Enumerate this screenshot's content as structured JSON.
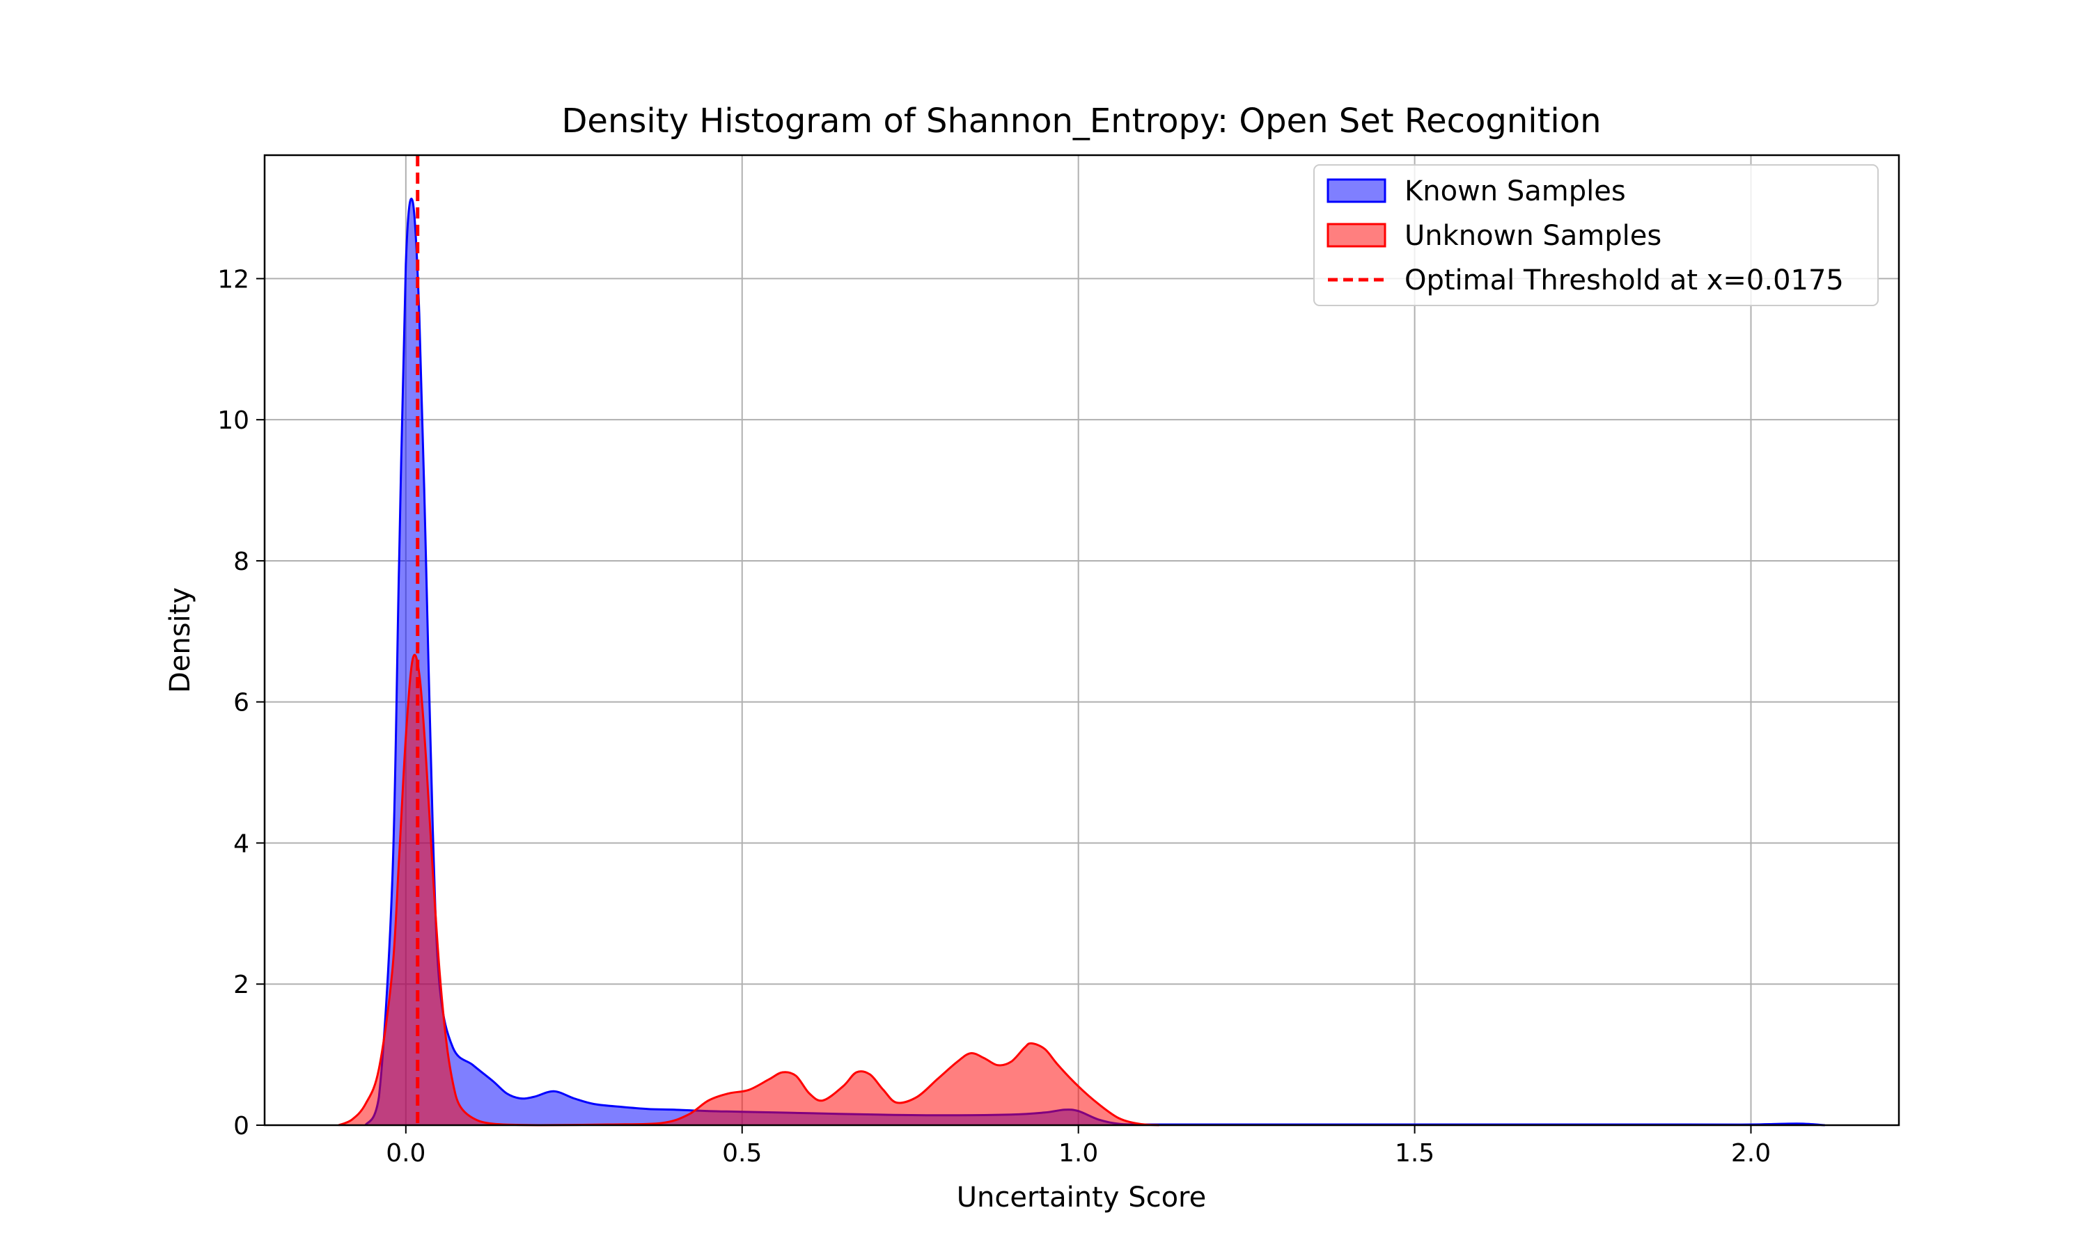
{
  "chart_data": {
    "type": "area",
    "title": "Density Histogram of Shannon_Entropy: Open Set Recognition",
    "xlabel": "Uncertainty Score",
    "ylabel": "Density",
    "xlim": [
      -0.21,
      2.22
    ],
    "ylim": [
      0,
      13.75
    ],
    "xticks": [
      0.0,
      0.5,
      1.0,
      1.5,
      2.0
    ],
    "xtick_labels": [
      "0.0",
      "0.5",
      "1.0",
      "1.5",
      "2.0"
    ],
    "yticks": [
      0,
      2,
      4,
      6,
      8,
      10,
      12
    ],
    "ytick_labels": [
      "0",
      "2",
      "4",
      "6",
      "8",
      "10",
      "12"
    ],
    "grid": true,
    "legend_position": "top-right",
    "series": [
      {
        "name": "Known Samples",
        "kind": "density",
        "color": "#0000ff",
        "fill_alpha": 0.5,
        "points": [
          [
            -0.06,
            0.0
          ],
          [
            -0.04,
            0.4
          ],
          [
            -0.02,
            3.5
          ],
          [
            -0.01,
            8.0
          ],
          [
            0.0,
            12.2
          ],
          [
            0.01,
            13.1
          ],
          [
            0.02,
            11.5
          ],
          [
            0.03,
            8.0
          ],
          [
            0.04,
            4.2
          ],
          [
            0.05,
            2.0
          ],
          [
            0.07,
            1.1
          ],
          [
            0.1,
            0.85
          ],
          [
            0.13,
            0.62
          ],
          [
            0.15,
            0.45
          ],
          [
            0.17,
            0.38
          ],
          [
            0.19,
            0.4
          ],
          [
            0.22,
            0.48
          ],
          [
            0.25,
            0.38
          ],
          [
            0.28,
            0.3
          ],
          [
            0.32,
            0.26
          ],
          [
            0.36,
            0.23
          ],
          [
            0.4,
            0.22
          ],
          [
            0.45,
            0.2
          ],
          [
            0.5,
            0.19
          ],
          [
            0.6,
            0.17
          ],
          [
            0.7,
            0.15
          ],
          [
            0.8,
            0.14
          ],
          [
            0.9,
            0.15
          ],
          [
            0.95,
            0.18
          ],
          [
            0.98,
            0.22
          ],
          [
            1.0,
            0.2
          ],
          [
            1.03,
            0.08
          ],
          [
            1.06,
            0.02
          ],
          [
            1.1,
            0.01
          ],
          [
            1.3,
            0.01
          ],
          [
            1.6,
            0.01
          ],
          [
            1.9,
            0.01
          ],
          [
            2.0,
            0.01
          ],
          [
            2.05,
            0.02
          ],
          [
            2.08,
            0.02
          ],
          [
            2.11,
            0.0
          ]
        ]
      },
      {
        "name": "Unknown Samples",
        "kind": "density",
        "color": "#ff0000",
        "fill_alpha": 0.5,
        "points": [
          [
            -0.1,
            0.0
          ],
          [
            -0.08,
            0.08
          ],
          [
            -0.06,
            0.3
          ],
          [
            -0.04,
            0.8
          ],
          [
            -0.02,
            2.2
          ],
          [
            -0.01,
            3.8
          ],
          [
            0.0,
            5.5
          ],
          [
            0.01,
            6.6
          ],
          [
            0.02,
            6.4
          ],
          [
            0.03,
            5.2
          ],
          [
            0.04,
            3.6
          ],
          [
            0.05,
            2.2
          ],
          [
            0.06,
            1.2
          ],
          [
            0.07,
            0.6
          ],
          [
            0.08,
            0.28
          ],
          [
            0.1,
            0.1
          ],
          [
            0.13,
            0.02
          ],
          [
            0.2,
            0.0
          ],
          [
            0.3,
            0.01
          ],
          [
            0.38,
            0.03
          ],
          [
            0.42,
            0.15
          ],
          [
            0.45,
            0.35
          ],
          [
            0.48,
            0.45
          ],
          [
            0.51,
            0.5
          ],
          [
            0.54,
            0.65
          ],
          [
            0.56,
            0.75
          ],
          [
            0.58,
            0.7
          ],
          [
            0.6,
            0.45
          ],
          [
            0.62,
            0.35
          ],
          [
            0.65,
            0.55
          ],
          [
            0.67,
            0.75
          ],
          [
            0.69,
            0.72
          ],
          [
            0.71,
            0.5
          ],
          [
            0.73,
            0.32
          ],
          [
            0.76,
            0.4
          ],
          [
            0.79,
            0.65
          ],
          [
            0.82,
            0.9
          ],
          [
            0.84,
            1.02
          ],
          [
            0.86,
            0.95
          ],
          [
            0.88,
            0.85
          ],
          [
            0.9,
            0.9
          ],
          [
            0.92,
            1.1
          ],
          [
            0.93,
            1.16
          ],
          [
            0.95,
            1.08
          ],
          [
            0.97,
            0.85
          ],
          [
            1.0,
            0.55
          ],
          [
            1.03,
            0.3
          ],
          [
            1.06,
            0.1
          ],
          [
            1.09,
            0.02
          ],
          [
            1.12,
            0.0
          ]
        ]
      }
    ],
    "threshold": {
      "label": "Optimal Threshold at x=0.0175",
      "x": 0.0175,
      "color": "#ff0000",
      "style": "dashed"
    }
  }
}
